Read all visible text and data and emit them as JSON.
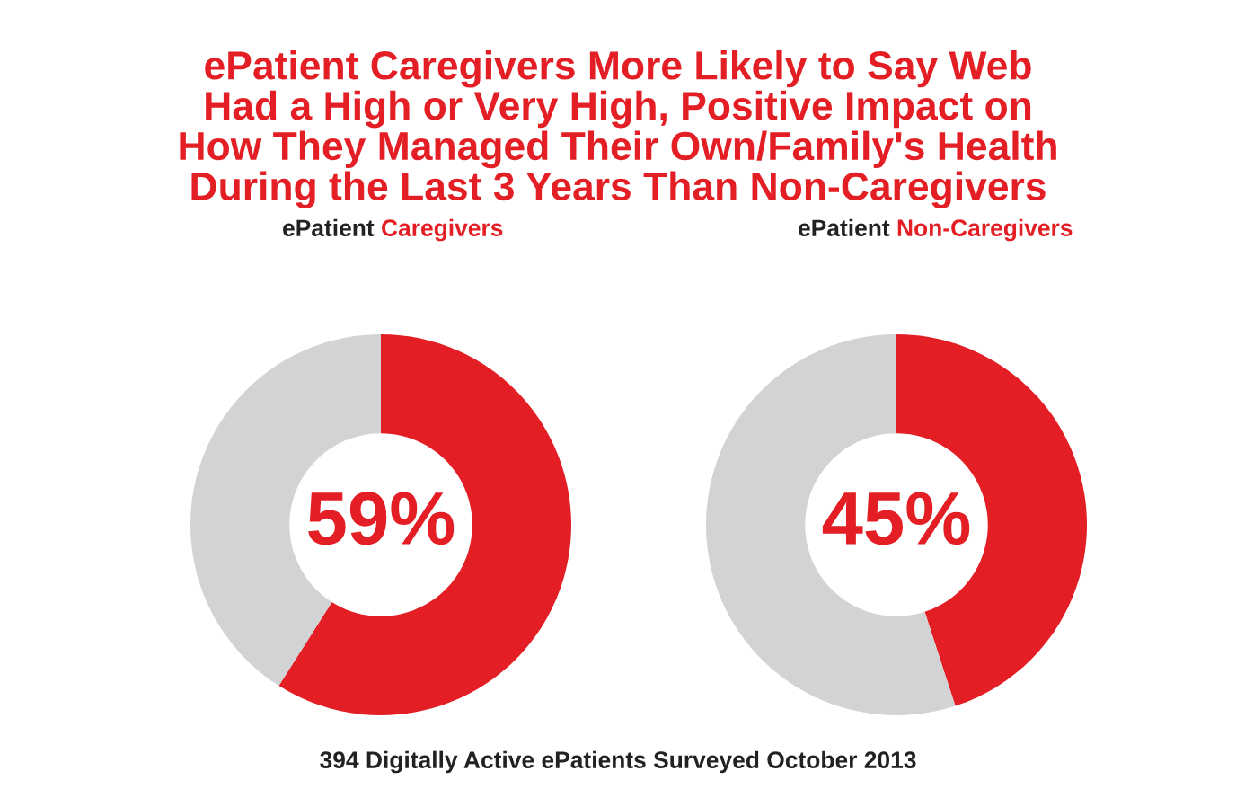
{
  "chart_data": [
    {
      "type": "donut",
      "title": "ePatient Caregivers More Likely to Say Web\nHad a High or Very High, Positive Impact on\nHow They Managed Their Own/Family's Health\nDuring the Last 3 Years Than Non-Caregivers",
      "subtitle": "ePatient Caregivers",
      "categories": [
        null,
        null
      ],
      "values": [
        59,
        41
      ],
      "colors": [
        "#e31e24",
        "#d1d3d4"
      ],
      "annotations": [
        "59%"
      ]
    },
    {
      "type": "donut",
      "subtitle": "ePatient Non-Caregivers",
      "categories": [
        null,
        null
      ],
      "values": [
        45,
        55
      ],
      "colors": [
        "#e31e24",
        "#d1d3d4"
      ],
      "annotations": [
        "45%",
        "394 Digitally Active ePatients Surveyed October 2013"
      ]
    }
  ]
}
